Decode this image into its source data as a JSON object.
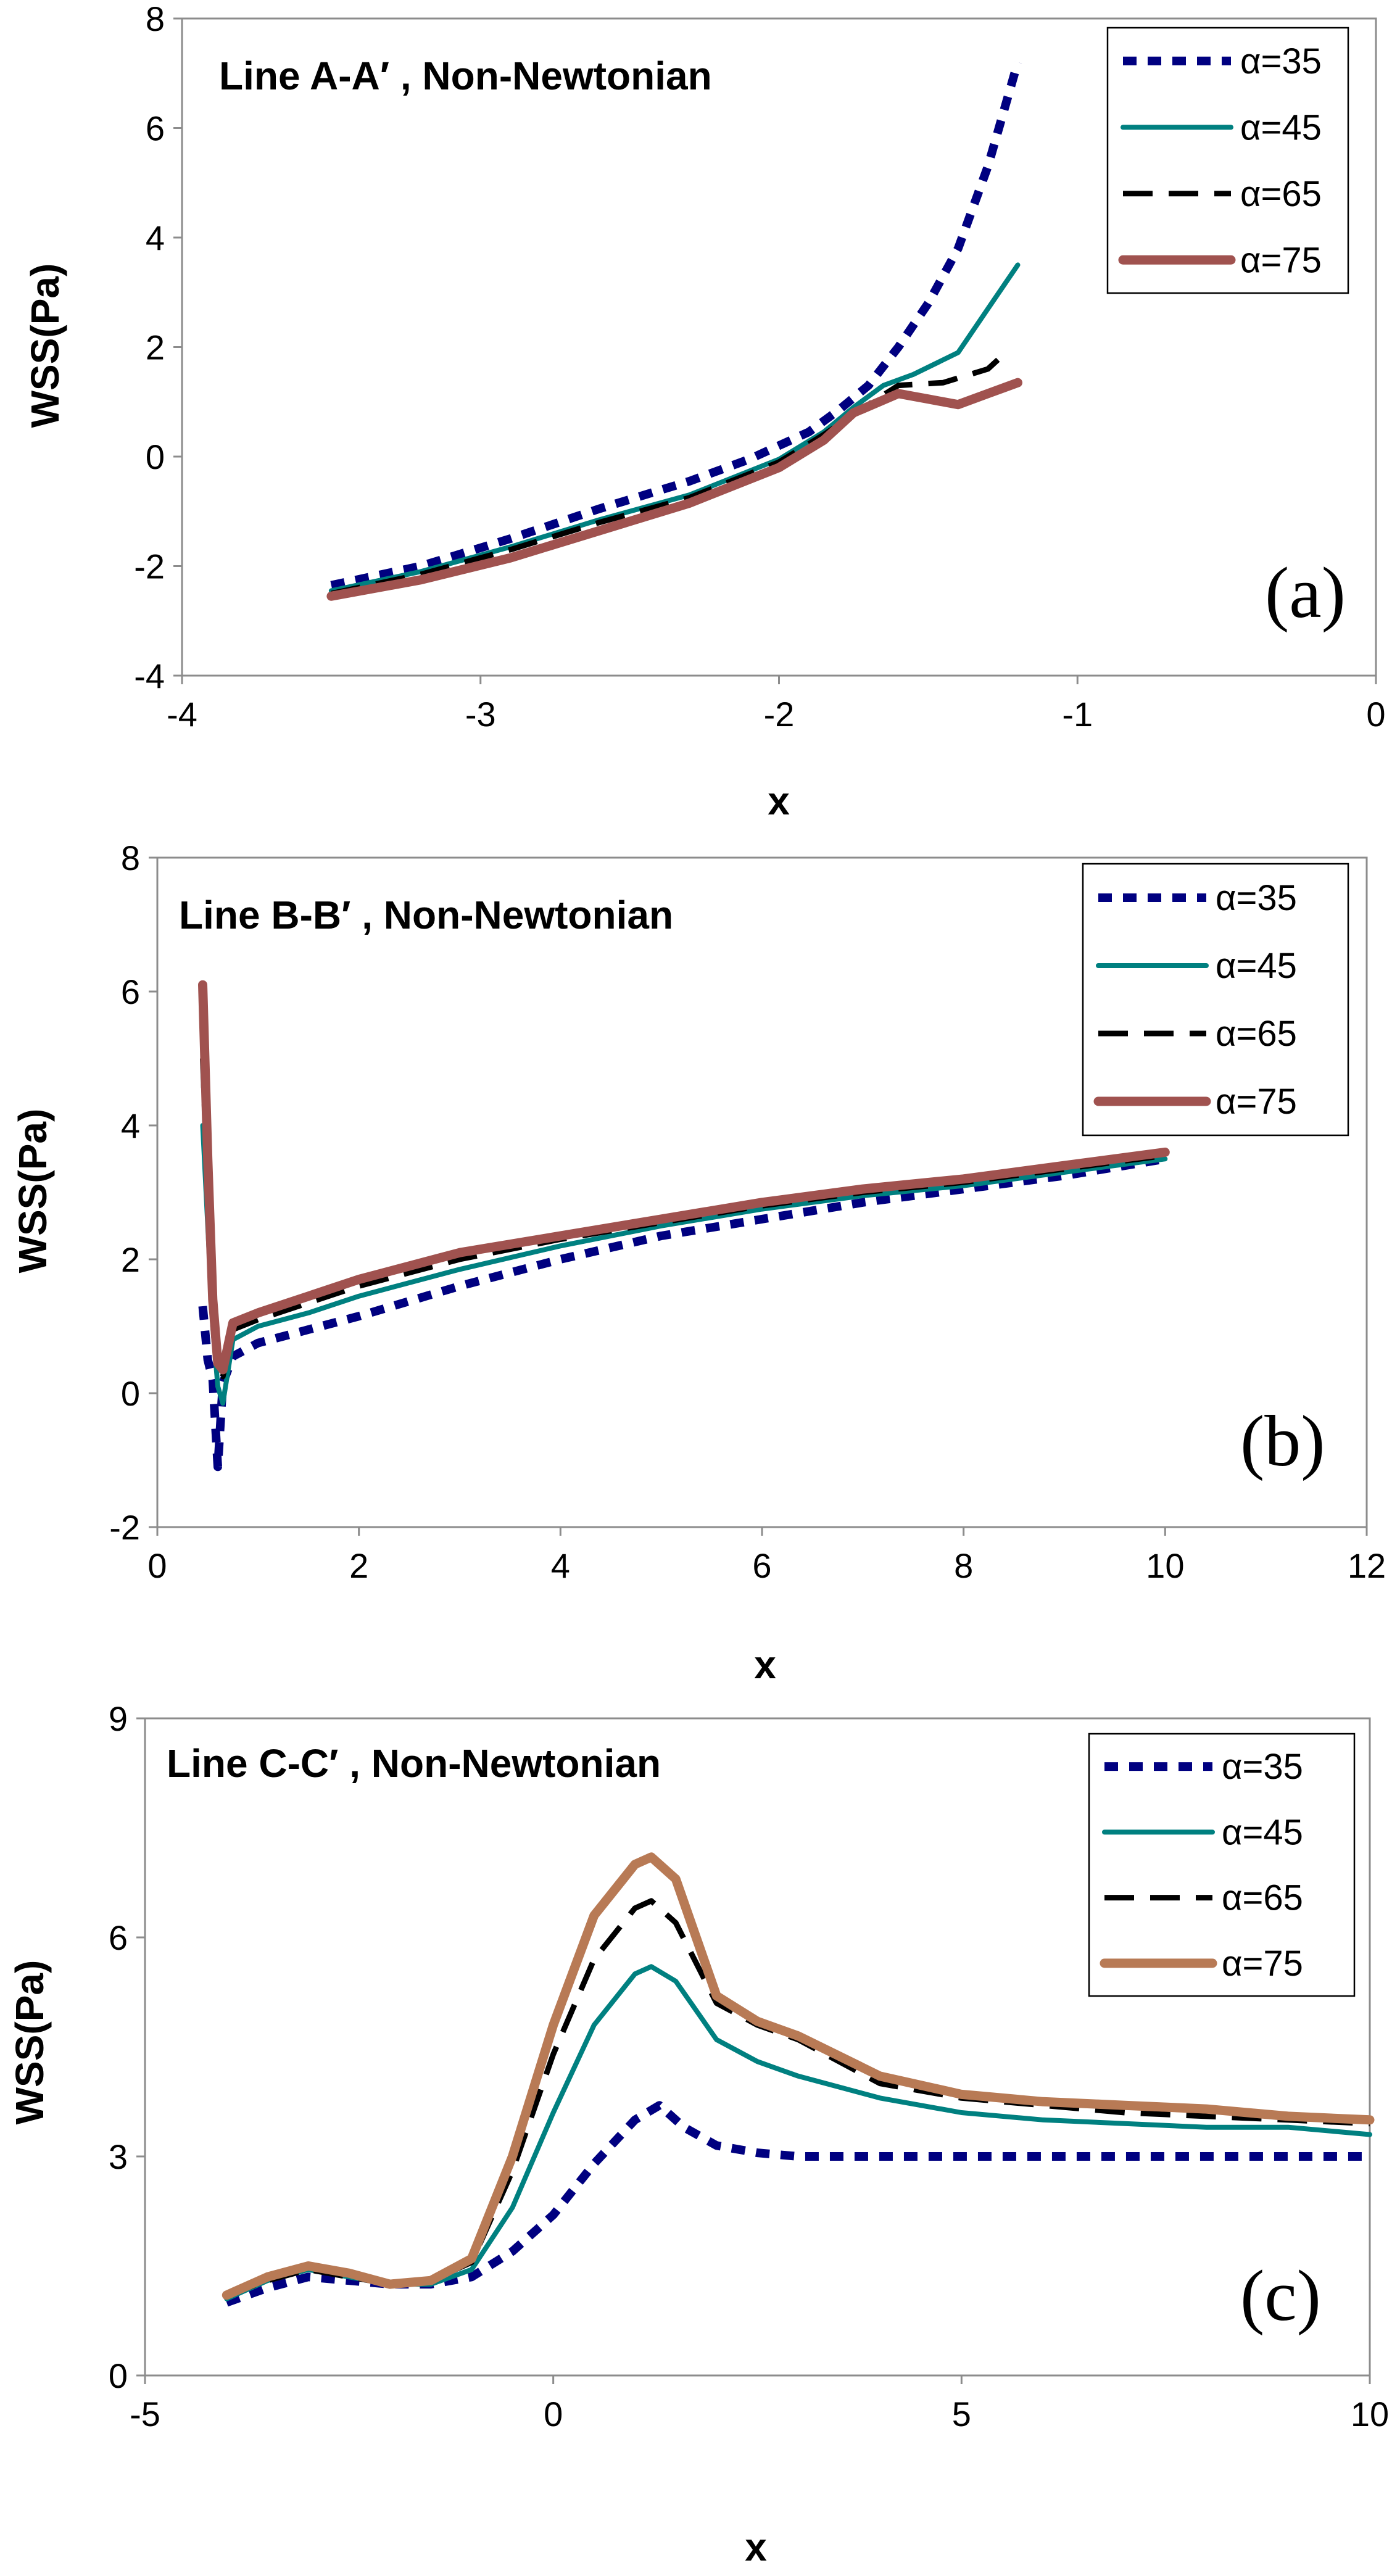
{
  "chart_data": [
    {
      "type": "line",
      "title": "Line A-A′ , Non-Newtonian",
      "panel_tag": "(a)",
      "xlabel": "x",
      "ylabel": "WSS(Pa)",
      "xlim": [
        -4,
        0
      ],
      "ylim": [
        -4,
        8
      ],
      "xticks": [
        -4,
        -3,
        -2,
        -1,
        0
      ],
      "yticks": [
        -4,
        -2,
        0,
        2,
        4,
        6,
        8
      ],
      "xtick_labels": [
        "-4",
        "-3",
        "-2",
        "-1",
        "0"
      ],
      "ytick_labels": [
        "-4",
        "-2",
        "0",
        "2",
        "4",
        "6",
        "8"
      ],
      "grid": false,
      "legend_position": "top-right",
      "series": [
        {
          "name": "α=35",
          "color": "#000080",
          "style": "dotted",
          "x": [
            -3.5,
            -3.2,
            -2.9,
            -2.6,
            -2.3,
            -2.1,
            -1.9,
            -1.8,
            -1.7,
            -1.6,
            -1.5,
            -1.4,
            -1.3,
            -1.2
          ],
          "y": [
            -2.35,
            -2.0,
            -1.5,
            -0.95,
            -0.45,
            -0.05,
            0.45,
            0.85,
            1.3,
            2.0,
            2.8,
            3.8,
            5.3,
            7.2
          ]
        },
        {
          "name": "α=45",
          "color": "#008080",
          "style": "solid",
          "x": [
            -3.5,
            -3.2,
            -2.9,
            -2.6,
            -2.3,
            -2.0,
            -1.85,
            -1.75,
            -1.65,
            -1.55,
            -1.4,
            -1.3,
            -1.2
          ],
          "y": [
            -2.45,
            -2.1,
            -1.65,
            -1.15,
            -0.7,
            -0.05,
            0.45,
            0.9,
            1.3,
            1.5,
            1.9,
            2.7,
            3.5
          ]
        },
        {
          "name": "α=65",
          "color": "#000000",
          "style": "dashed",
          "x": [
            -3.5,
            -3.2,
            -2.9,
            -2.6,
            -2.3,
            -2.0,
            -1.85,
            -1.7,
            -1.6,
            -1.45,
            -1.3,
            -1.25
          ],
          "y": [
            -2.5,
            -2.15,
            -1.7,
            -1.2,
            -0.75,
            -0.1,
            0.4,
            0.95,
            1.3,
            1.35,
            1.6,
            1.85
          ]
        },
        {
          "name": "α=75",
          "color": "#a0524f",
          "style": "solid-thick",
          "x": [
            -3.5,
            -3.2,
            -2.9,
            -2.6,
            -2.3,
            -2.0,
            -1.85,
            -1.75,
            -1.6,
            -1.5,
            -1.4,
            -1.3,
            -1.2
          ],
          "y": [
            -2.55,
            -2.25,
            -1.85,
            -1.35,
            -0.85,
            -0.2,
            0.3,
            0.8,
            1.15,
            1.05,
            0.95,
            1.15,
            1.35
          ]
        }
      ]
    },
    {
      "type": "line",
      "title": "Line B-B′ , Non-Newtonian",
      "panel_tag": "(b)",
      "xlabel": "x",
      "ylabel": "WSS(Pa)",
      "xlim": [
        0,
        12
      ],
      "ylim": [
        -2,
        8
      ],
      "xticks": [
        0,
        2,
        4,
        6,
        8,
        10,
        12
      ],
      "yticks": [
        -2,
        0,
        2,
        4,
        6,
        8
      ],
      "xtick_labels": [
        "0",
        "2",
        "4",
        "6",
        "8",
        "10",
        "12"
      ],
      "ytick_labels": [
        "-2",
        "0",
        "2",
        "4",
        "6",
        "8"
      ],
      "grid": false,
      "legend_position": "top-right",
      "series": [
        {
          "name": "α=35",
          "color": "#000080",
          "style": "dotted",
          "x": [
            0.45,
            0.5,
            0.55,
            0.6,
            0.65,
            0.75,
            1.0,
            1.5,
            2.0,
            3.0,
            4.0,
            5.0,
            6.0,
            7.0,
            8.0,
            9.0,
            10.0
          ],
          "y": [
            1.3,
            0.5,
            0.2,
            -1.1,
            0.15,
            0.55,
            0.75,
            0.95,
            1.15,
            1.6,
            2.0,
            2.35,
            2.6,
            2.85,
            3.05,
            3.25,
            3.5
          ]
        },
        {
          "name": "α=45",
          "color": "#008080",
          "style": "solid",
          "x": [
            0.45,
            0.5,
            0.55,
            0.6,
            0.65,
            0.75,
            1.0,
            1.5,
            2.0,
            3.0,
            4.0,
            5.0,
            6.0,
            7.0,
            8.0,
            9.0,
            10.0
          ],
          "y": [
            4.0,
            2.5,
            1.0,
            0.1,
            -0.15,
            0.8,
            1.0,
            1.2,
            1.45,
            1.85,
            2.2,
            2.5,
            2.75,
            2.95,
            3.1,
            3.3,
            3.5
          ]
        },
        {
          "name": "α=65",
          "color": "#000000",
          "style": "dashed",
          "x": [
            0.45,
            0.5,
            0.55,
            0.6,
            0.65,
            0.75,
            1.0,
            1.5,
            2.0,
            3.0,
            4.0,
            5.0,
            6.0,
            7.0,
            8.0,
            9.0,
            10.0
          ],
          "y": [
            5.0,
            3.0,
            1.2,
            0.35,
            0.25,
            0.95,
            1.1,
            1.35,
            1.6,
            2.0,
            2.3,
            2.55,
            2.8,
            3.0,
            3.15,
            3.35,
            3.55
          ]
        },
        {
          "name": "α=75",
          "color": "#a0524f",
          "style": "solid-thick",
          "x": [
            0.45,
            0.5,
            0.55,
            0.6,
            0.65,
            0.75,
            1.0,
            1.5,
            2.0,
            3.0,
            4.0,
            5.0,
            6.0,
            7.0,
            8.0,
            9.0,
            10.0
          ],
          "y": [
            6.1,
            3.5,
            1.4,
            0.45,
            0.35,
            1.05,
            1.2,
            1.45,
            1.7,
            2.1,
            2.35,
            2.6,
            2.85,
            3.05,
            3.2,
            3.4,
            3.6
          ]
        }
      ]
    },
    {
      "type": "line",
      "title": "Line C-C′ , Non-Newtonian",
      "panel_tag": "(c)",
      "xlabel": "x",
      "ylabel": "WSS(Pa)",
      "xlim": [
        -5,
        10
      ],
      "ylim": [
        0,
        9
      ],
      "xticks": [
        -5,
        0,
        5,
        10
      ],
      "yticks": [
        0,
        3,
        6,
        9
      ],
      "xtick_labels": [
        "-5",
        "0",
        "5",
        "10"
      ],
      "ytick_labels": [
        "0",
        "3",
        "6",
        "9"
      ],
      "grid": false,
      "legend_position": "top-right",
      "series": [
        {
          "name": "α=35",
          "color": "#000080",
          "style": "dotted",
          "x": [
            -4.0,
            -3.5,
            -3.0,
            -2.5,
            -2.0,
            -1.5,
            -1.0,
            -0.5,
            0.0,
            0.5,
            1.0,
            1.3,
            1.6,
            2.0,
            2.5,
            3.0,
            4.0,
            5.0,
            6.0,
            7.0,
            8.0,
            9.0,
            10.0
          ],
          "y": [
            1.0,
            1.2,
            1.35,
            1.3,
            1.25,
            1.25,
            1.35,
            1.7,
            2.2,
            2.9,
            3.5,
            3.7,
            3.4,
            3.15,
            3.05,
            3.0,
            3.0,
            3.0,
            3.0,
            3.0,
            3.0,
            3.0,
            3.0
          ]
        },
        {
          "name": "α=45",
          "color": "#008080",
          "style": "solid",
          "x": [
            -4.0,
            -3.5,
            -3.0,
            -2.5,
            -2.0,
            -1.5,
            -1.0,
            -0.5,
            0.0,
            0.5,
            1.0,
            1.2,
            1.5,
            2.0,
            2.5,
            3.0,
            4.0,
            5.0,
            6.0,
            7.0,
            8.0,
            9.0,
            10.0
          ],
          "y": [
            1.05,
            1.3,
            1.45,
            1.35,
            1.25,
            1.25,
            1.45,
            2.3,
            3.6,
            4.8,
            5.5,
            5.6,
            5.4,
            4.6,
            4.3,
            4.1,
            3.8,
            3.6,
            3.5,
            3.45,
            3.4,
            3.4,
            3.3
          ]
        },
        {
          "name": "α=65",
          "color": "#000000",
          "style": "dashed",
          "x": [
            -4.0,
            -3.5,
            -3.0,
            -2.5,
            -2.0,
            -1.5,
            -1.0,
            -0.5,
            0.0,
            0.5,
            1.0,
            1.2,
            1.5,
            2.0,
            2.5,
            3.0,
            4.0,
            5.0,
            6.0,
            7.0,
            8.0,
            9.0,
            10.0
          ],
          "y": [
            1.1,
            1.3,
            1.45,
            1.35,
            1.25,
            1.3,
            1.55,
            2.8,
            4.4,
            5.7,
            6.4,
            6.5,
            6.2,
            5.1,
            4.8,
            4.6,
            4.0,
            3.8,
            3.7,
            3.6,
            3.55,
            3.5,
            3.45
          ]
        },
        {
          "name": "α=75",
          "color": "#b87a55",
          "style": "solid-thick",
          "x": [
            -4.0,
            -3.5,
            -3.0,
            -2.5,
            -2.0,
            -1.5,
            -1.0,
            -0.5,
            0.0,
            0.5,
            1.0,
            1.2,
            1.5,
            2.0,
            2.5,
            3.0,
            4.0,
            5.0,
            6.0,
            7.0,
            8.0,
            9.0,
            10.0
          ],
          "y": [
            1.1,
            1.35,
            1.5,
            1.4,
            1.25,
            1.3,
            1.6,
            3.0,
            4.8,
            6.3,
            7.0,
            7.1,
            6.8,
            5.2,
            4.85,
            4.65,
            4.1,
            3.85,
            3.75,
            3.7,
            3.65,
            3.55,
            3.5
          ]
        }
      ]
    }
  ]
}
